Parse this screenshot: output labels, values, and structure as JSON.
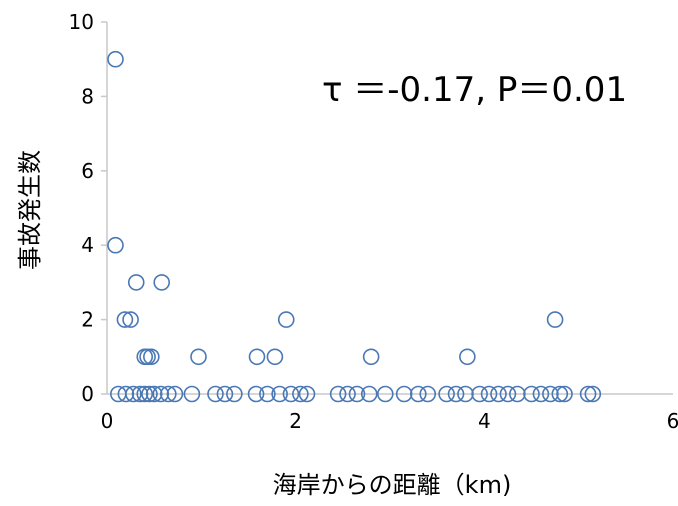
{
  "chart_data": {
    "type": "scatter",
    "title": "",
    "xlabel": "海岸からの距離（km)",
    "ylabel": "事故発生数",
    "annotation": "τ ＝-0.17,  P＝0.01",
    "xlim": [
      0,
      6
    ],
    "ylim": [
      0,
      10
    ],
    "xticks": [
      0,
      2,
      4,
      6
    ],
    "yticks": [
      0,
      2,
      4,
      6,
      8,
      10
    ],
    "xtick_labels": [
      "0",
      "2",
      "4",
      "6"
    ],
    "ytick_labels": [
      "0",
      "2",
      "4",
      "6",
      "8",
      "10"
    ],
    "grid": false,
    "marker": "open-circle",
    "marker_color": "#4a78b5",
    "axis_color": "#c8c8c8",
    "points": [
      {
        "x": 0.09,
        "y": 9
      },
      {
        "x": 0.09,
        "y": 4
      },
      {
        "x": 0.31,
        "y": 3
      },
      {
        "x": 0.58,
        "y": 3
      },
      {
        "x": 0.19,
        "y": 2
      },
      {
        "x": 0.25,
        "y": 2
      },
      {
        "x": 1.9,
        "y": 2
      },
      {
        "x": 4.75,
        "y": 2
      },
      {
        "x": 0.4,
        "y": 1
      },
      {
        "x": 0.43,
        "y": 1
      },
      {
        "x": 0.47,
        "y": 1
      },
      {
        "x": 0.97,
        "y": 1
      },
      {
        "x": 1.59,
        "y": 1
      },
      {
        "x": 1.78,
        "y": 1
      },
      {
        "x": 2.8,
        "y": 1
      },
      {
        "x": 3.82,
        "y": 1
      },
      {
        "x": 0.12,
        "y": 0
      },
      {
        "x": 0.2,
        "y": 0
      },
      {
        "x": 0.28,
        "y": 0
      },
      {
        "x": 0.35,
        "y": 0
      },
      {
        "x": 0.4,
        "y": 0
      },
      {
        "x": 0.45,
        "y": 0
      },
      {
        "x": 0.5,
        "y": 0
      },
      {
        "x": 0.57,
        "y": 0
      },
      {
        "x": 0.65,
        "y": 0
      },
      {
        "x": 0.72,
        "y": 0
      },
      {
        "x": 0.9,
        "y": 0
      },
      {
        "x": 1.15,
        "y": 0
      },
      {
        "x": 1.25,
        "y": 0
      },
      {
        "x": 1.35,
        "y": 0
      },
      {
        "x": 1.58,
        "y": 0
      },
      {
        "x": 1.7,
        "y": 0
      },
      {
        "x": 1.83,
        "y": 0
      },
      {
        "x": 1.95,
        "y": 0
      },
      {
        "x": 2.05,
        "y": 0
      },
      {
        "x": 2.12,
        "y": 0
      },
      {
        "x": 2.45,
        "y": 0
      },
      {
        "x": 2.55,
        "y": 0
      },
      {
        "x": 2.65,
        "y": 0
      },
      {
        "x": 2.78,
        "y": 0
      },
      {
        "x": 2.95,
        "y": 0
      },
      {
        "x": 3.15,
        "y": 0
      },
      {
        "x": 3.3,
        "y": 0
      },
      {
        "x": 3.4,
        "y": 0
      },
      {
        "x": 3.6,
        "y": 0
      },
      {
        "x": 3.7,
        "y": 0
      },
      {
        "x": 3.8,
        "y": 0
      },
      {
        "x": 3.95,
        "y": 0
      },
      {
        "x": 4.05,
        "y": 0
      },
      {
        "x": 4.15,
        "y": 0
      },
      {
        "x": 4.25,
        "y": 0
      },
      {
        "x": 4.35,
        "y": 0
      },
      {
        "x": 4.5,
        "y": 0
      },
      {
        "x": 4.6,
        "y": 0
      },
      {
        "x": 4.7,
        "y": 0
      },
      {
        "x": 4.8,
        "y": 0
      },
      {
        "x": 4.85,
        "y": 0
      },
      {
        "x": 5.1,
        "y": 0
      },
      {
        "x": 5.15,
        "y": 0
      }
    ]
  }
}
